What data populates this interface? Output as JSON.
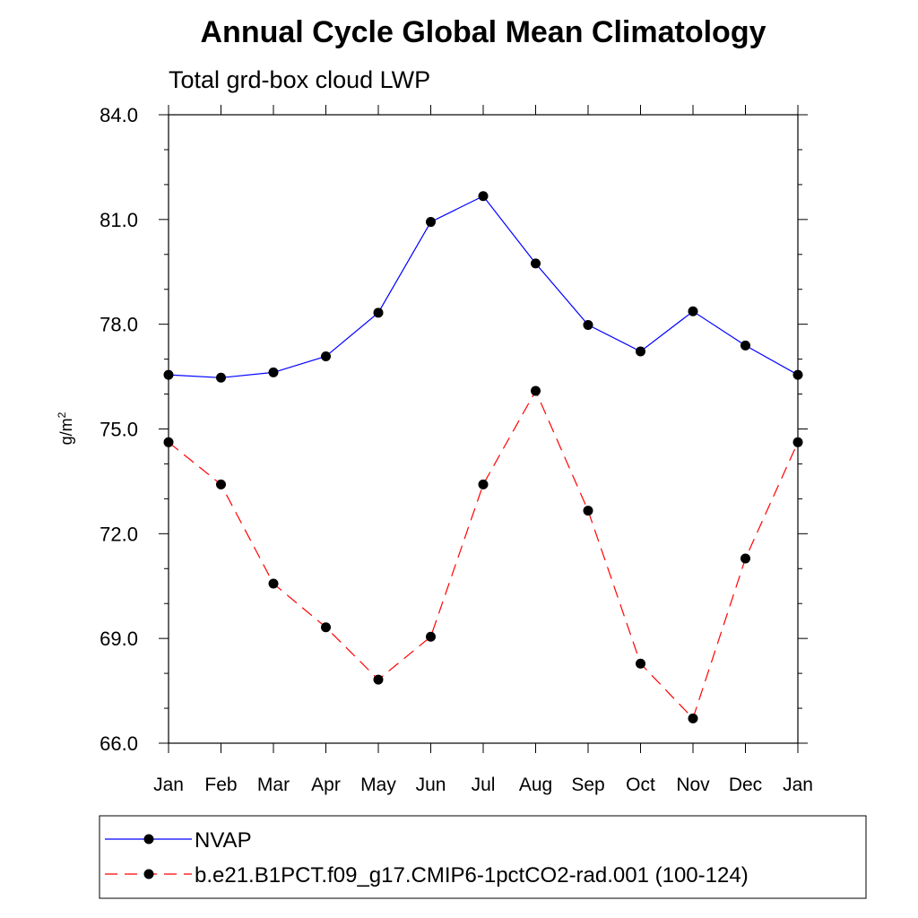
{
  "chart_data": {
    "type": "line",
    "title": "Annual Cycle Global Mean Climatology",
    "subtitle": "Total grd-box cloud LWP",
    "xlabel": "",
    "ylabel": "g/m",
    "ylabel_superscript": "2",
    "ylim": [
      66.0,
      84.0
    ],
    "y_ticks": [
      "84.0",
      "81.0",
      "78.0",
      "75.0",
      "72.0",
      "69.0",
      "66.0"
    ],
    "y_tick_values": [
      84,
      81,
      78,
      75,
      72,
      69,
      66
    ],
    "categories": [
      "Jan",
      "Feb",
      "Mar",
      "Apr",
      "May",
      "Jun",
      "Jul",
      "Aug",
      "Sep",
      "Oct",
      "Nov",
      "Dec",
      "Jan"
    ],
    "series": [
      {
        "name": "NVAP",
        "color": "#0000ff",
        "dash": "solid",
        "values": [
          76.55,
          76.47,
          76.62,
          77.08,
          78.33,
          80.93,
          81.67,
          79.74,
          77.98,
          77.22,
          78.37,
          77.39,
          76.55
        ]
      },
      {
        "name": "b.e21.B1PCT.f09_g17.CMIP6-1pctCO2-rad.001 (100-124)",
        "color": "#ff0000",
        "dash": "dashed",
        "values": [
          74.62,
          73.41,
          70.57,
          69.32,
          67.82,
          69.05,
          73.41,
          76.09,
          72.66,
          68.28,
          66.71,
          71.29,
          74.62
        ]
      }
    ],
    "legend_position": "bottom"
  }
}
